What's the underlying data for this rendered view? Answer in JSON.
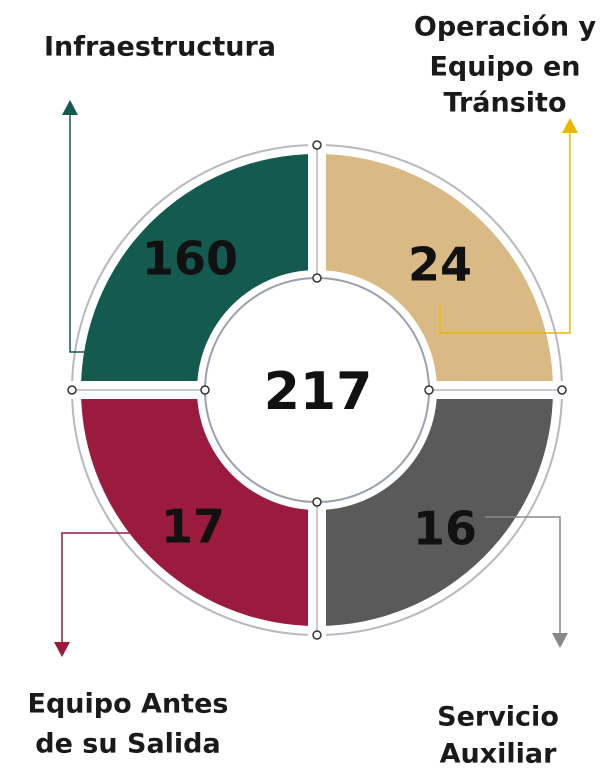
{
  "total": 217,
  "segments": [
    {
      "label": [
        "Infraestructura"
      ],
      "value": 160,
      "color": "#145a4e"
    },
    {
      "label": [
        "Operación y",
        "Equipo en",
        "Tránsito"
      ],
      "value": 24,
      "color": "#d9b984"
    },
    {
      "label": [
        "Equipo Antes",
        "de su Salida"
      ],
      "value": 17,
      "color": "#9a1b3e"
    },
    {
      "label": [
        "Servicio",
        "Auxiliar"
      ],
      "value": 16,
      "color": "#5a5a5a"
    }
  ]
}
